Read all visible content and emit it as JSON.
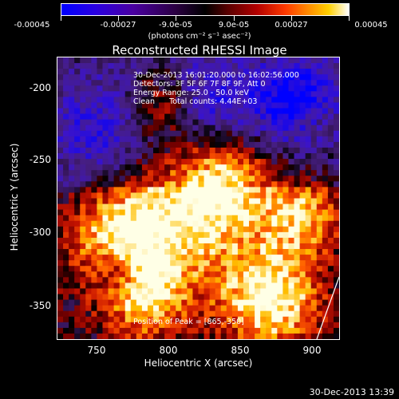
{
  "colorbar": {
    "labels": [
      "-0.00045",
      "-0.00027",
      "-9.0e-05",
      "9.0e-05",
      "0.00027",
      "0.00045"
    ],
    "units": "(photons cm⁻² s⁻¹ asec⁻²)"
  },
  "title": "Reconstructed RHESSI Image",
  "info": {
    "line1": "30-Dec-2013 16:01:20.000 to 16:02:56.000",
    "line2": "Detectors: 3F 5F 6F 7F 8F 9F, Att 0",
    "line3": "Energy Range: 25.0 - 50.0 keV",
    "line4": "Clean      Total counts: 4.44E+03",
    "peak": "Position of Peak = [865,-350]"
  },
  "axes": {
    "xlabel": "Heliocentric X (arcsec)",
    "ylabel": "Heliocentric Y (arcsec)",
    "xticks": [
      "750",
      "800",
      "850",
      "900"
    ],
    "yticks": [
      "-200",
      "-250",
      "-300",
      "-350"
    ]
  },
  "timestamp": "30-Dec-2013 13:39"
}
